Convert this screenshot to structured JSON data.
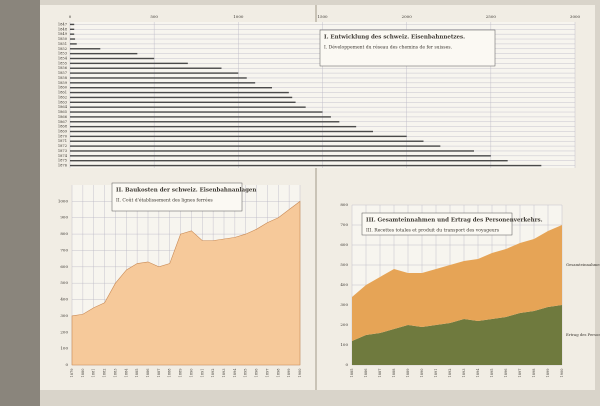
{
  "chart_data": [
    {
      "type": "hbar",
      "title": "I. Entwicklung des schweiz. Eisenbahnnetzes.",
      "subtitle": "I. Développement du réseau des chemins de fer suisses.",
      "categories": [
        "1847",
        "1848",
        "1849",
        "1850",
        "1851",
        "1852",
        "1853",
        "1854",
        "1855",
        "1856",
        "1857",
        "1858",
        "1859",
        "1860",
        "1861",
        "1862",
        "1863",
        "1864",
        "1865",
        "1866",
        "1867",
        "1868",
        "1869",
        "1870",
        "1871",
        "1872",
        "1873",
        "1874",
        "1875",
        "1876"
      ],
      "values": [
        25,
        25,
        25,
        30,
        40,
        180,
        400,
        500,
        700,
        900,
        1000,
        1050,
        1100,
        1200,
        1300,
        1320,
        1340,
        1400,
        1500,
        1550,
        1600,
        1700,
        1800,
        2000,
        2100,
        2200,
        2400,
        2500,
        2600,
        2800
      ],
      "color": "#4a4a4a",
      "xlim": [
        0,
        3000
      ],
      "xticks": [
        0,
        500,
        1000,
        1500,
        2000,
        2500,
        3000
      ]
    },
    {
      "type": "area",
      "title": "II. Baukosten der schweiz. Eisenbahnanlagen",
      "subtitle": "II. Coût d'établissement des lignes ferrées",
      "x": [
        1879,
        1880,
        1881,
        1882,
        1883,
        1884,
        1885,
        1886,
        1887,
        1888,
        1889,
        1890,
        1891,
        1892,
        1893,
        1894,
        1895,
        1896,
        1897,
        1898,
        1899,
        1900
      ],
      "values": [
        300,
        310,
        350,
        380,
        500,
        580,
        620,
        630,
        600,
        620,
        800,
        820,
        760,
        760,
        770,
        780,
        800,
        830,
        870,
        900,
        950,
        1000
      ],
      "color": "#f6c99a",
      "xlim": [
        1879,
        1900
      ],
      "ylim": [
        0,
        1100
      ],
      "yticks": [
        0,
        100,
        200,
        300,
        400,
        500,
        600,
        700,
        800,
        900,
        1000
      ]
    },
    {
      "type": "stacked_area",
      "title": "III. Gesamteinnahmen und Ertrag des Personenverkehrs.",
      "subtitle": "III. Recettes totales et produit du transport des voyageurs",
      "x": [
        1885,
        1886,
        1887,
        1888,
        1889,
        1890,
        1891,
        1892,
        1893,
        1894,
        1895,
        1896,
        1897,
        1898,
        1899,
        1900
      ],
      "xlim": [
        1885,
        1900
      ],
      "ylim": [
        0,
        800
      ],
      "yticks": [
        0,
        100,
        200,
        300,
        400,
        500,
        600,
        700,
        800
      ],
      "series": [
        {
          "name": "Ertrag des Personentransportes",
          "color": "#6f7a3e",
          "values": [
            120,
            150,
            160,
            180,
            200,
            190,
            200,
            210,
            230,
            220,
            230,
            240,
            260,
            270,
            290,
            300
          ]
        },
        {
          "name": "Gesamteinnahmen",
          "color": "#e6a456",
          "values": [
            220,
            250,
            280,
            300,
            260,
            270,
            280,
            290,
            290,
            310,
            330,
            340,
            350,
            360,
            380,
            400
          ]
        }
      ]
    }
  ]
}
